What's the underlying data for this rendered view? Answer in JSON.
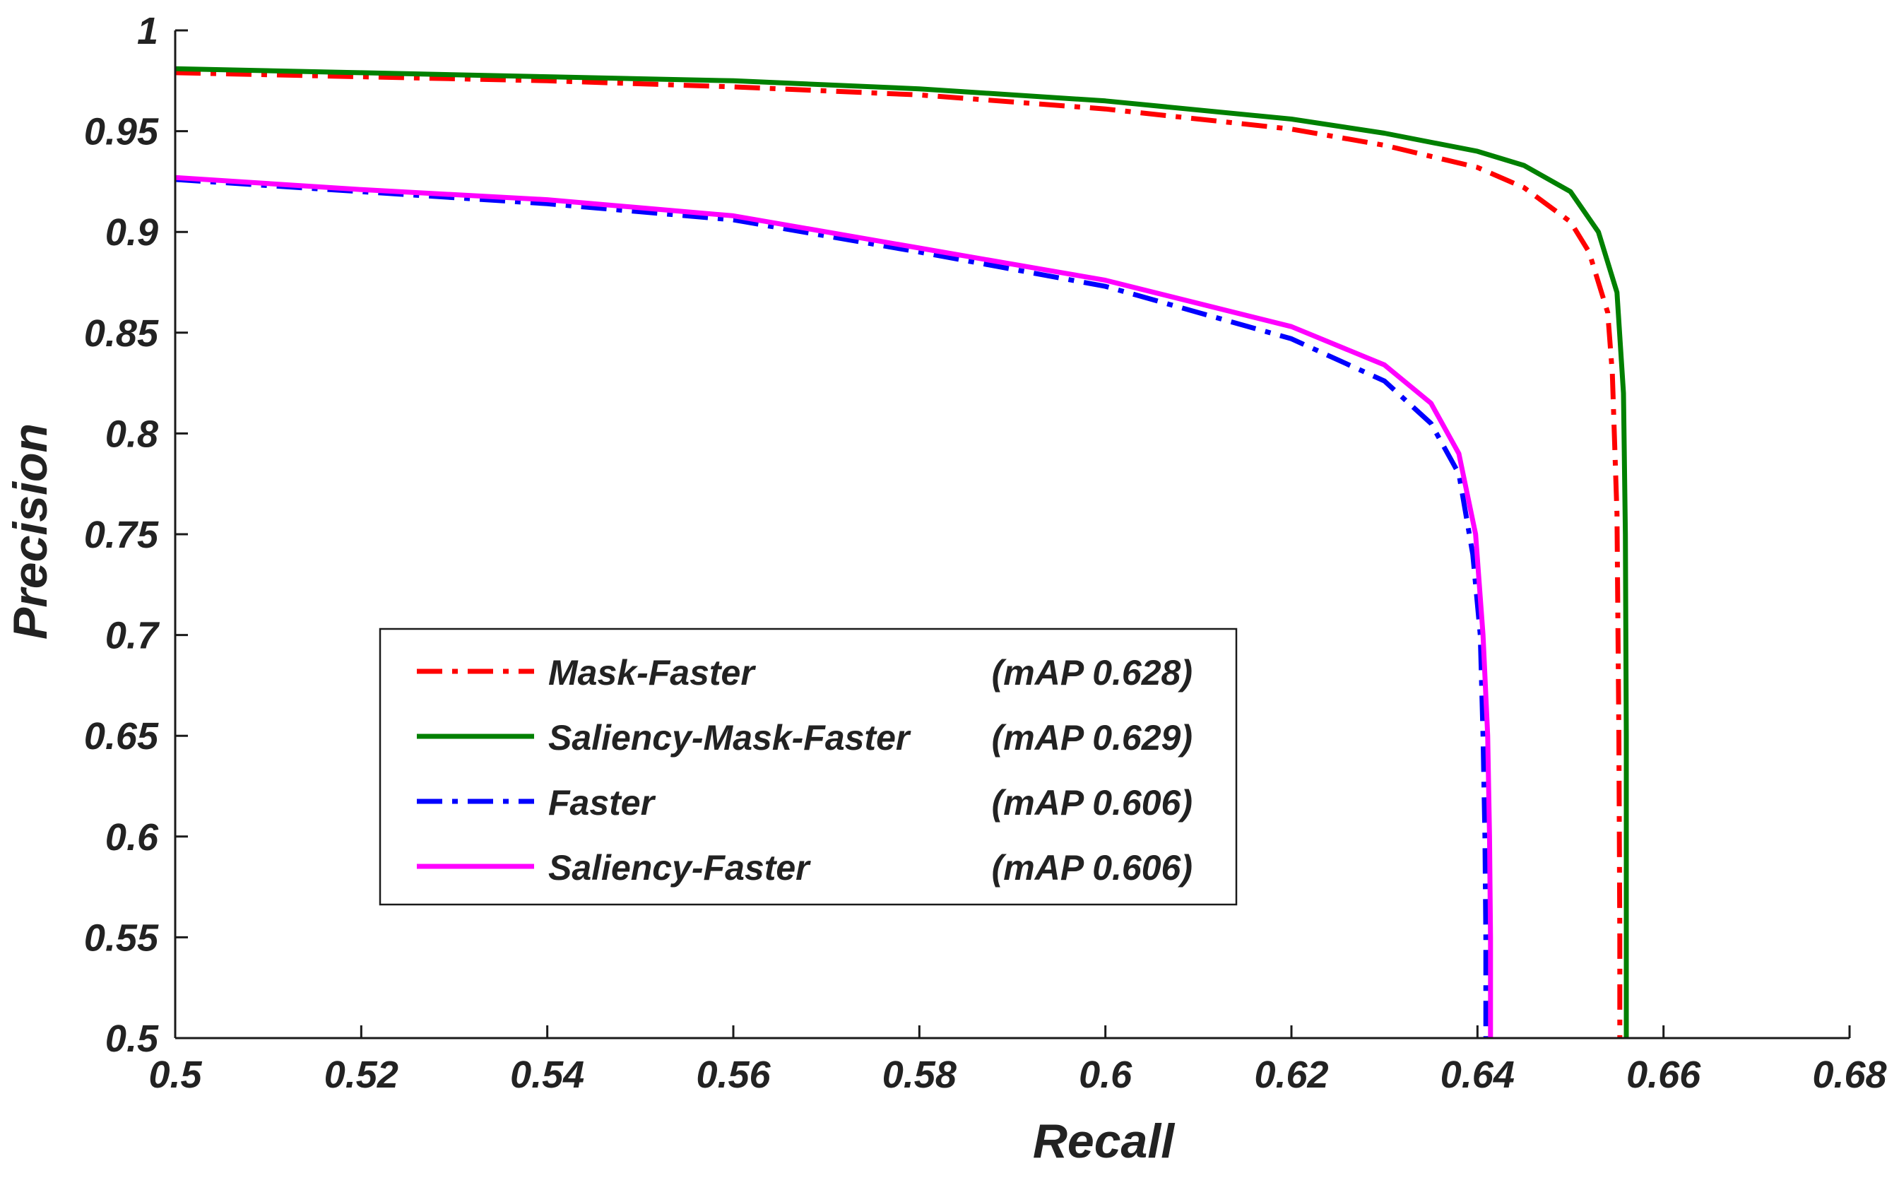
{
  "chart_data": {
    "type": "line",
    "xlabel": "Recall",
    "ylabel": "Precision",
    "xlim": [
      0.5,
      0.68
    ],
    "ylim": [
      0.5,
      1.0
    ],
    "xticks": [
      0.5,
      0.52,
      0.54,
      0.56,
      0.58,
      0.6,
      0.62,
      0.64,
      0.66,
      0.68
    ],
    "xtick_labels": [
      "0.5",
      "0.52",
      "0.54",
      "0.56",
      "0.58",
      "0.6",
      "0.62",
      "0.64",
      "0.66",
      "0.68"
    ],
    "yticks": [
      0.5,
      0.55,
      0.6,
      0.65,
      0.7,
      0.75,
      0.8,
      0.85,
      0.9,
      0.95,
      1.0
    ],
    "ytick_labels": [
      "0.5",
      "0.55",
      "0.6",
      "0.65",
      "0.7",
      "0.75",
      "0.8",
      "0.85",
      "0.9",
      "0.95",
      "1"
    ],
    "grid": false,
    "legend_position": "center-left",
    "series": [
      {
        "name": "Mask-Faster",
        "map_label": "(mAP 0.628)",
        "color": "#ff0000",
        "style": "dashdot",
        "x": [
          0.5,
          0.52,
          0.54,
          0.56,
          0.58,
          0.6,
          0.62,
          0.63,
          0.64,
          0.645,
          0.65,
          0.652,
          0.654,
          0.6545,
          0.655,
          0.6552,
          0.6553,
          0.6553
        ],
        "y": [
          0.979,
          0.977,
          0.975,
          0.972,
          0.968,
          0.961,
          0.951,
          0.943,
          0.932,
          0.922,
          0.905,
          0.89,
          0.86,
          0.83,
          0.76,
          0.65,
          0.55,
          0.5
        ]
      },
      {
        "name": "Saliency-Mask-Faster",
        "map_label": "(mAP 0.629)",
        "color": "#008000",
        "style": "solid",
        "x": [
          0.5,
          0.52,
          0.54,
          0.56,
          0.58,
          0.6,
          0.62,
          0.63,
          0.64,
          0.645,
          0.65,
          0.653,
          0.655,
          0.6557,
          0.6559,
          0.656,
          0.656,
          0.656
        ],
        "y": [
          0.981,
          0.979,
          0.977,
          0.975,
          0.971,
          0.965,
          0.956,
          0.949,
          0.94,
          0.933,
          0.92,
          0.9,
          0.87,
          0.82,
          0.75,
          0.65,
          0.55,
          0.5
        ]
      },
      {
        "name": "Faster",
        "map_label": "(mAP 0.606)",
        "color": "#0000ff",
        "style": "dashdot",
        "x": [
          0.5,
          0.52,
          0.54,
          0.56,
          0.58,
          0.6,
          0.62,
          0.63,
          0.635,
          0.638,
          0.6395,
          0.6403,
          0.6406,
          0.6408,
          0.6409,
          0.6409
        ],
        "y": [
          0.926,
          0.92,
          0.914,
          0.906,
          0.89,
          0.873,
          0.847,
          0.826,
          0.805,
          0.78,
          0.74,
          0.7,
          0.65,
          0.6,
          0.55,
          0.5
        ]
      },
      {
        "name": "Saliency-Faster",
        "map_label": "(mAP 0.606)",
        "color": "#ff00ff",
        "style": "solid",
        "x": [
          0.5,
          0.52,
          0.54,
          0.56,
          0.58,
          0.6,
          0.62,
          0.63,
          0.635,
          0.638,
          0.6398,
          0.6406,
          0.6411,
          0.6413,
          0.6414,
          0.6414
        ],
        "y": [
          0.927,
          0.921,
          0.916,
          0.908,
          0.892,
          0.876,
          0.853,
          0.834,
          0.815,
          0.79,
          0.75,
          0.7,
          0.65,
          0.6,
          0.55,
          0.5
        ]
      }
    ]
  }
}
